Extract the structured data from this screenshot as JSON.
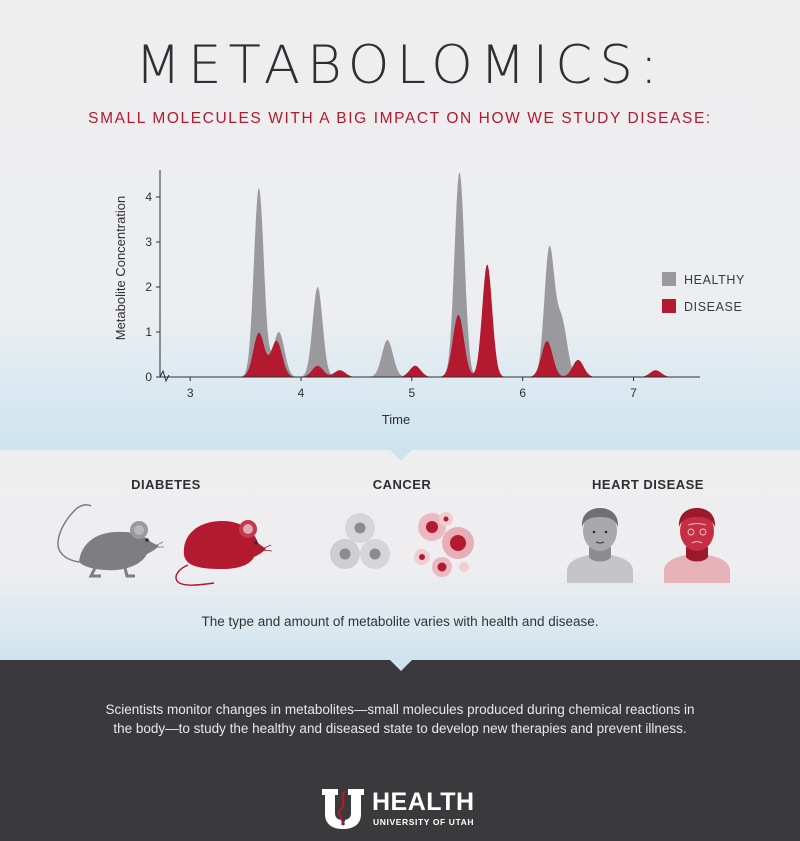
{
  "header": {
    "title": "METABOLOMICS:",
    "subtitle": "SMALL MOLECULES WITH A BIG IMPACT ON HOW WE STUDY DISEASE:"
  },
  "chart_data": {
    "type": "area",
    "title": "",
    "xlabel": "Time",
    "ylabel": "Metabolite Concentration",
    "xlim": [
      2.8,
      7.6
    ],
    "ylim": [
      0,
      4.6
    ],
    "x_ticks": [
      3,
      4,
      5,
      6,
      7
    ],
    "y_ticks": [
      0,
      1,
      2,
      3,
      4
    ],
    "grid": false,
    "legend_position": "right",
    "series": [
      {
        "name": "HEALTHY",
        "color": "#9a9a9e",
        "peaks": [
          {
            "x": 3.62,
            "y": 4.2
          },
          {
            "x": 3.8,
            "y": 1.0
          },
          {
            "x": 4.15,
            "y": 2.0
          },
          {
            "x": 4.78,
            "y": 0.82
          },
          {
            "x": 5.43,
            "y": 4.55
          },
          {
            "x": 6.24,
            "y": 2.8
          },
          {
            "x": 6.35,
            "y": 1.25
          }
        ]
      },
      {
        "name": "DISEASE",
        "color": "#b3192f",
        "peaks": [
          {
            "x": 3.62,
            "y": 0.98
          },
          {
            "x": 3.78,
            "y": 0.8
          },
          {
            "x": 4.15,
            "y": 0.25
          },
          {
            "x": 4.35,
            "y": 0.15
          },
          {
            "x": 5.03,
            "y": 0.25
          },
          {
            "x": 5.42,
            "y": 1.38
          },
          {
            "x": 5.68,
            "y": 2.5
          },
          {
            "x": 6.22,
            "y": 0.8
          },
          {
            "x": 6.5,
            "y": 0.38
          },
          {
            "x": 7.2,
            "y": 0.15
          }
        ]
      }
    ]
  },
  "categories": {
    "diabetes": "DIABETES",
    "cancer": "CANCER",
    "heart": "HEART DISEASE"
  },
  "caption": "The type and amount of metabolite varies with health and disease.",
  "description": "Scientists monitor changes in metabolites—small molecules produced during chemical reactions in the body—to study the healthy and diseased state to develop new therapies and prevent illness.",
  "logo": {
    "name": "HEALTH",
    "subtitle": "UNIVERSITY OF UTAH"
  },
  "colors": {
    "accent_red": "#b3192f",
    "healthy_gray": "#9a9a9e",
    "dark_band": "#3a3a3c"
  }
}
